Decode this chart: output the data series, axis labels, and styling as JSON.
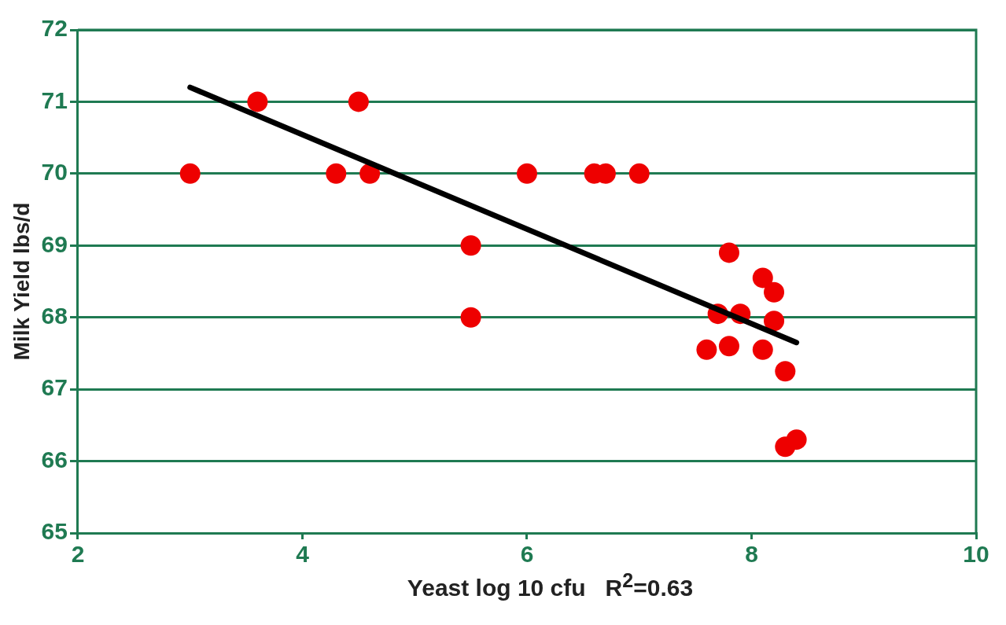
{
  "chart_data": {
    "type": "scatter",
    "xlabel": "Yeast log 10 cfu   R$^{2}$=0.63",
    "ylabel": "Milk Yield lbs/d",
    "xlim": [
      2,
      10
    ],
    "xticks": [
      2,
      4,
      6,
      8,
      10
    ],
    "ylim": [
      65,
      72
    ],
    "yticks": [
      65,
      66,
      67,
      68,
      69,
      70,
      71,
      72
    ],
    "grid": "y",
    "legend": false,
    "marker": "circle",
    "series": [
      {
        "color": "#ee0000",
        "x": [
          3.0,
          3.6,
          4.3,
          4.5,
          4.6,
          5.5,
          5.5,
          6.0,
          6.6,
          6.7,
          7.0,
          7.8,
          8.1,
          8.2,
          7.7,
          7.9,
          8.2,
          7.6,
          7.8,
          8.1,
          8.3,
          8.3,
          8.4
        ],
        "values": [
          70.0,
          71.0,
          70.0,
          71.0,
          70.0,
          69.0,
          68.0,
          70.0,
          70.0,
          70.0,
          70.0,
          68.9,
          68.55,
          68.35,
          68.05,
          68.05,
          67.95,
          67.55,
          67.6,
          67.55,
          67.25,
          66.2,
          66.3
        ]
      },
      {
        "type": "line",
        "color": "#000000",
        "marker": "none",
        "x": [
          3.0,
          8.4
        ],
        "values": [
          71.2,
          67.65
        ]
      }
    ]
  }
}
